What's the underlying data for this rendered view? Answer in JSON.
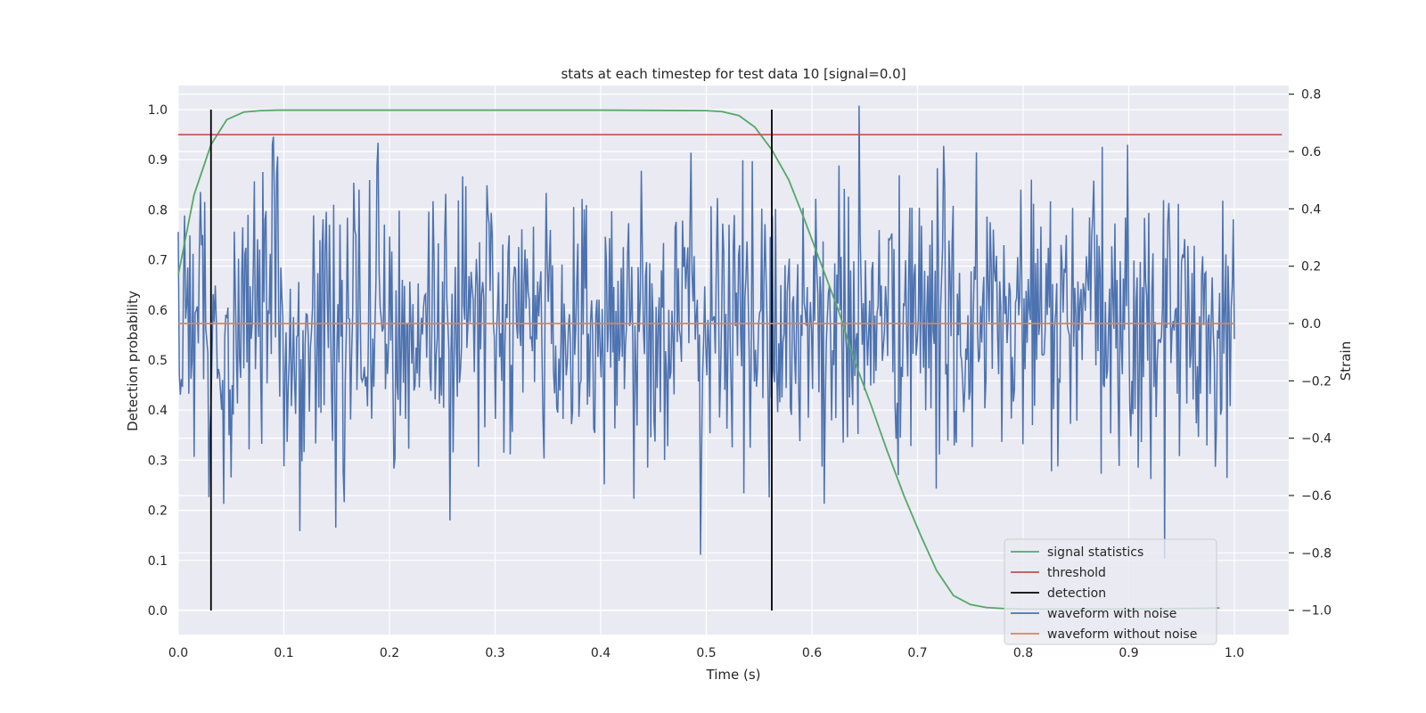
{
  "chart_data": {
    "type": "line",
    "title": "stats at each timestep for test data 10 [signal=0.0]",
    "xlabel": "Time (s)",
    "ylabel": "Detection probability",
    "ylabel_right": "Strain",
    "xlim": [
      0.0,
      1.05
    ],
    "ylim": [
      -0.048,
      1.048
    ],
    "ylim_right": [
      -1.085,
      0.83
    ],
    "x_ticks": [
      0.0,
      0.1,
      0.2,
      0.3,
      0.4,
      0.5,
      0.6,
      0.7,
      0.8,
      0.9,
      1.0
    ],
    "x_tick_labels": [
      "0.0",
      "0.1",
      "0.2",
      "0.3",
      "0.4",
      "0.5",
      "0.6",
      "0.7",
      "0.8",
      "0.9",
      "1.0"
    ],
    "y_ticks": [
      0.0,
      0.1,
      0.2,
      0.3,
      0.4,
      0.5,
      0.6,
      0.7,
      0.8,
      0.9,
      1.0
    ],
    "y_tick_labels": [
      "0.0",
      "0.1",
      "0.2",
      "0.3",
      "0.4",
      "0.5",
      "0.6",
      "0.7",
      "0.8",
      "0.9",
      "1.0"
    ],
    "y_right_ticks": [
      0.8,
      0.6,
      0.4,
      0.2,
      0.0,
      -0.2,
      -0.4,
      -0.6,
      -0.8,
      -1.0
    ],
    "y_right_tick_labels": [
      "0.8",
      "0.6",
      "0.4",
      "0.2",
      "0.0",
      "−0.2",
      "−0.4",
      "−0.6",
      "−0.8",
      "−1.0"
    ],
    "grid": true,
    "legend_position": "lower-right",
    "series": [
      {
        "name": "signal statistics",
        "axis": "left",
        "color": "#55a868",
        "x": [
          0.0,
          0.015,
          0.031,
          0.046,
          0.062,
          0.078,
          0.094,
          0.109,
          0.2,
          0.3,
          0.4,
          0.5,
          0.515,
          0.531,
          0.546,
          0.562,
          0.578,
          0.593,
          0.609,
          0.625,
          0.64,
          0.656,
          0.671,
          0.687,
          0.703,
          0.718,
          0.734,
          0.75,
          0.765,
          0.781,
          0.8,
          0.85,
          0.9,
          0.95,
          0.986
        ],
        "y": [
          0.67,
          0.83,
          0.93,
          0.98,
          0.995,
          0.998,
          0.999,
          0.999,
          0.999,
          0.999,
          0.999,
          0.998,
          0.996,
          0.988,
          0.965,
          0.92,
          0.86,
          0.78,
          0.69,
          0.6,
          0.5,
          0.41,
          0.32,
          0.23,
          0.15,
          0.08,
          0.03,
          0.012,
          0.006,
          0.004,
          0.003,
          0.003,
          0.003,
          0.004,
          0.005
        ]
      },
      {
        "name": "threshold",
        "axis": "left",
        "color": "#c44e52",
        "x": [
          0.0,
          1.045
        ],
        "y": [
          0.95,
          0.95
        ]
      },
      {
        "name": "detection",
        "axis": "left",
        "color": "#000000",
        "x": [
          0.031,
          0.562
        ],
        "y_range": [
          0.0,
          1.0
        ]
      },
      {
        "name": "waveform with noise",
        "axis": "right",
        "color": "#4c72b0",
        "x_range": [
          0.0,
          1.0
        ],
        "n_points": 1000,
        "amplitude": 0.8,
        "min": -0.82,
        "max": 0.76
      },
      {
        "name": "waveform without noise",
        "axis": "right",
        "color": "#dd8452",
        "x": [
          0.0,
          1.0
        ],
        "y": [
          0.0,
          0.0
        ]
      }
    ]
  }
}
